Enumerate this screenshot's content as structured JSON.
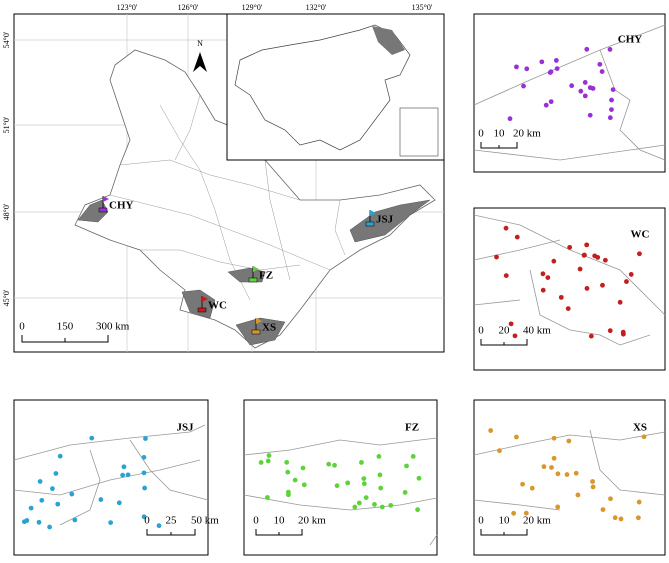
{
  "main_map": {
    "lon_labels": [
      "123°0'",
      "126°0'",
      "129°0'",
      "132°0'",
      "135°0'"
    ],
    "lat_labels": [
      "54°0'",
      "51°0'",
      "48°0'",
      "45°0'"
    ],
    "north": "N",
    "sites": [
      "CHY",
      "JSJ",
      "FZ",
      "WC",
      "XS"
    ],
    "scale": [
      "0",
      "150",
      "300 km"
    ]
  },
  "panels": [
    {
      "label": "CHY",
      "color": "#9b2fd6",
      "scale": [
        "0",
        "10",
        "20 km"
      ]
    },
    {
      "label": "WC",
      "color": "#c41e1e",
      "scale": [
        "0",
        "20",
        "40 km"
      ]
    },
    {
      "label": "JSJ",
      "color": "#2ba3cf",
      "scale": [
        "0",
        "25",
        "50 km"
      ]
    },
    {
      "label": "FZ",
      "color": "#5fd23b",
      "scale": [
        "0",
        "10",
        "20 km"
      ]
    },
    {
      "label": "XS",
      "color": "#d9962b",
      "scale": [
        "0",
        "10",
        "20 km"
      ]
    }
  ]
}
